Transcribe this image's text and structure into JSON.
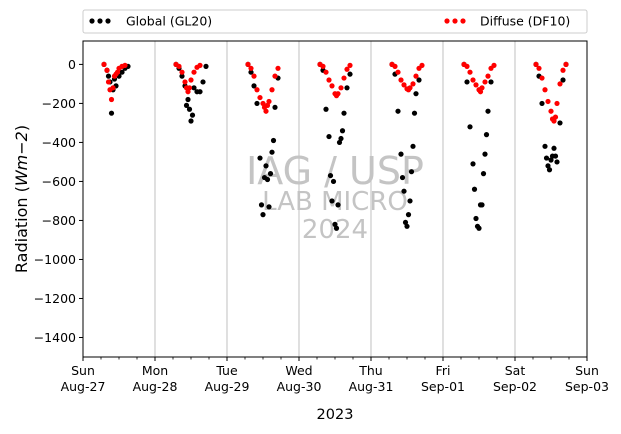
{
  "chart_data": {
    "type": "scatter",
    "title": "",
    "ylabel": "Radiation ($Wm{-}2$)",
    "ylabel_parts": {
      "prefix": "Radiation (",
      "math": "Wm−2",
      "suffix": ")"
    },
    "xlabel": "2023",
    "ylim": [
      -1500,
      120
    ],
    "yticks": [
      0,
      -200,
      -400,
      -600,
      -800,
      -1000,
      -1200,
      -1400
    ],
    "xlim_days": [
      0,
      7
    ],
    "x_ticks": [
      {
        "day": "Sun",
        "date": "Aug-27"
      },
      {
        "day": "Mon",
        "date": "Aug-28"
      },
      {
        "day": "Tue",
        "date": "Aug-29"
      },
      {
        "day": "Wed",
        "date": "Aug-30"
      },
      {
        "day": "Thu",
        "date": "Aug-31"
      },
      {
        "day": "Fri",
        "date": "Sep-01"
      },
      {
        "day": "Sat",
        "date": "Sep-02"
      },
      {
        "day": "Sun",
        "date": "Sep-03"
      }
    ],
    "grid": "vertical",
    "legend_placement": "top-outside",
    "series": [
      {
        "name": "Global (GL20)",
        "color": "#000000",
        "points": [
          [
            "Aug-27 07:00",
            0
          ],
          [
            "Aug-27 08:00",
            -30
          ],
          [
            "Aug-27 08:30",
            -60
          ],
          [
            "Aug-27 09:00",
            -90
          ],
          [
            "Aug-27 09:30",
            -250
          ],
          [
            "Aug-27 10:00",
            -130
          ],
          [
            "Aug-27 10:30",
            -75
          ],
          [
            "Aug-27 11:00",
            -110
          ],
          [
            "Aug-27 12:00",
            -60
          ],
          [
            "Aug-27 13:00",
            -40
          ],
          [
            "Aug-27 14:00",
            -20
          ],
          [
            "Aug-27 15:00",
            -10
          ],
          [
            "Aug-28 07:00",
            0
          ],
          [
            "Aug-28 08:00",
            -20
          ],
          [
            "Aug-28 09:00",
            -60
          ],
          [
            "Aug-28 10:00",
            -110
          ],
          [
            "Aug-28 10:30",
            -210
          ],
          [
            "Aug-28 11:00",
            -180
          ],
          [
            "Aug-28 11:30",
            -230
          ],
          [
            "Aug-28 12:00",
            -290
          ],
          [
            "Aug-28 12:30",
            -260
          ],
          [
            "Aug-28 13:00",
            -120
          ],
          [
            "Aug-28 14:00",
            -140
          ],
          [
            "Aug-28 15:00",
            -140
          ],
          [
            "Aug-28 16:00",
            -90
          ],
          [
            "Aug-28 17:00",
            -10
          ],
          [
            "Aug-29 07:00",
            0
          ],
          [
            "Aug-29 08:00",
            -40
          ],
          [
            "Aug-29 09:00",
            -110
          ],
          [
            "Aug-29 10:00",
            -200
          ],
          [
            "Aug-29 11:00",
            -480
          ],
          [
            "Aug-29 11:30",
            -720
          ],
          [
            "Aug-29 12:00",
            -770
          ],
          [
            "Aug-29 12:30",
            -580
          ],
          [
            "Aug-29 13:00",
            -520
          ],
          [
            "Aug-29 13:30",
            -590
          ],
          [
            "Aug-29 14:00",
            -730
          ],
          [
            "Aug-29 14:30",
            -560
          ],
          [
            "Aug-29 15:00",
            -450
          ],
          [
            "Aug-29 15:30",
            -390
          ],
          [
            "Aug-29 16:00",
            -220
          ],
          [
            "Aug-29 17:00",
            -70
          ],
          [
            "Aug-30 07:00",
            0
          ],
          [
            "Aug-30 08:00",
            -30
          ],
          [
            "Aug-30 09:00",
            -230
          ],
          [
            "Aug-30 10:00",
            -370
          ],
          [
            "Aug-30 10:30",
            -570
          ],
          [
            "Aug-30 11:00",
            -700
          ],
          [
            "Aug-30 11:30",
            -600
          ],
          [
            "Aug-30 12:00",
            -820
          ],
          [
            "Aug-30 12:30",
            -840
          ],
          [
            "Aug-30 13:00",
            -720
          ],
          [
            "Aug-30 13:30",
            -400
          ],
          [
            "Aug-30 14:00",
            -380
          ],
          [
            "Aug-30 14:30",
            -340
          ],
          [
            "Aug-30 15:00",
            -250
          ],
          [
            "Aug-30 16:00",
            -120
          ],
          [
            "Aug-30 17:00",
            -50
          ],
          [
            "Aug-31 07:00",
            0
          ],
          [
            "Aug-31 08:00",
            -50
          ],
          [
            "Aug-31 09:00",
            -240
          ],
          [
            "Aug-31 10:00",
            -460
          ],
          [
            "Aug-31 10:30",
            -580
          ],
          [
            "Aug-31 11:00",
            -650
          ],
          [
            "Aug-31 11:30",
            -810
          ],
          [
            "Aug-31 12:00",
            -830
          ],
          [
            "Aug-31 12:30",
            -770
          ],
          [
            "Aug-31 13:00",
            -700
          ],
          [
            "Aug-31 13:30",
            -550
          ],
          [
            "Aug-31 14:00",
            -420
          ],
          [
            "Aug-31 14:30",
            -250
          ],
          [
            "Aug-31 15:00",
            -150
          ],
          [
            "Aug-31 16:00",
            -80
          ],
          [
            "Sep-01 07:00",
            0
          ],
          [
            "Sep-01 08:00",
            -90
          ],
          [
            "Sep-01 09:00",
            -320
          ],
          [
            "Sep-01 10:00",
            -510
          ],
          [
            "Sep-01 10:30",
            -640
          ],
          [
            "Sep-01 11:00",
            -790
          ],
          [
            "Sep-01 11:30",
            -830
          ],
          [
            "Sep-01 12:00",
            -840
          ],
          [
            "Sep-01 12:30",
            -720
          ],
          [
            "Sep-01 13:00",
            -720
          ],
          [
            "Sep-01 13:30",
            -560
          ],
          [
            "Sep-01 14:00",
            -460
          ],
          [
            "Sep-01 14:30",
            -360
          ],
          [
            "Sep-01 15:00",
            -240
          ],
          [
            "Sep-01 16:00",
            -90
          ],
          [
            "Sep-02 07:00",
            0
          ],
          [
            "Sep-02 08:00",
            -60
          ],
          [
            "Sep-02 09:00",
            -200
          ],
          [
            "Sep-02 10:00",
            -420
          ],
          [
            "Sep-02 10:30",
            -480
          ],
          [
            "Sep-02 11:00",
            -520
          ],
          [
            "Sep-02 11:30",
            -540
          ],
          [
            "Sep-02 12:00",
            -490
          ],
          [
            "Sep-02 12:30",
            -470
          ],
          [
            "Sep-02 13:00",
            -430
          ],
          [
            "Sep-02 13:30",
            -470
          ],
          [
            "Sep-02 14:00",
            -500
          ],
          [
            "Sep-02 15:00",
            -300
          ],
          [
            "Sep-02 16:00",
            -80
          ],
          [
            "Sep-02 17:00",
            0
          ]
        ]
      },
      {
        "name": "Diffuse (DF10)",
        "color": "#ff0000",
        "points": [
          [
            "Aug-27 07:00",
            0
          ],
          [
            "Aug-27 08:00",
            -30
          ],
          [
            "Aug-27 08:30",
            -90
          ],
          [
            "Aug-27 09:00",
            -130
          ],
          [
            "Aug-27 09:30",
            -180
          ],
          [
            "Aug-27 10:00",
            -120
          ],
          [
            "Aug-27 10:30",
            -60
          ],
          [
            "Aug-27 11:00",
            -50
          ],
          [
            "Aug-27 11:30",
            -40
          ],
          [
            "Aug-27 12:00",
            -20
          ],
          [
            "Aug-27 13:00",
            -10
          ],
          [
            "Aug-27 14:00",
            -5
          ],
          [
            "Aug-28 07:00",
            0
          ],
          [
            "Aug-28 08:00",
            -10
          ],
          [
            "Aug-28 09:00",
            -40
          ],
          [
            "Aug-28 10:00",
            -90
          ],
          [
            "Aug-28 10:30",
            -120
          ],
          [
            "Aug-28 11:00",
            -140
          ],
          [
            "Aug-28 11:30",
            -120
          ],
          [
            "Aug-28 12:00",
            -80
          ],
          [
            "Aug-28 13:00",
            -40
          ],
          [
            "Aug-28 14:00",
            -15
          ],
          [
            "Aug-28 15:00",
            -5
          ],
          [
            "Aug-29 07:00",
            0
          ],
          [
            "Aug-29 08:00",
            -20
          ],
          [
            "Aug-29 09:00",
            -60
          ],
          [
            "Aug-29 10:00",
            -130
          ],
          [
            "Aug-29 11:00",
            -170
          ],
          [
            "Aug-29 12:00",
            -200
          ],
          [
            "Aug-29 12:30",
            -220
          ],
          [
            "Aug-29 13:00",
            -240
          ],
          [
            "Aug-29 13:30",
            -210
          ],
          [
            "Aug-29 14:00",
            -190
          ],
          [
            "Aug-29 15:00",
            -130
          ],
          [
            "Aug-29 16:00",
            -60
          ],
          [
            "Aug-29 17:00",
            -20
          ],
          [
            "Aug-30 07:00",
            0
          ],
          [
            "Aug-30 08:00",
            -10
          ],
          [
            "Aug-30 09:00",
            -40
          ],
          [
            "Aug-30 10:00",
            -80
          ],
          [
            "Aug-30 11:00",
            -110
          ],
          [
            "Aug-30 12:00",
            -150
          ],
          [
            "Aug-30 12:30",
            -160
          ],
          [
            "Aug-30 13:00",
            -150
          ],
          [
            "Aug-30 14:00",
            -120
          ],
          [
            "Aug-30 15:00",
            -70
          ],
          [
            "Aug-30 16:00",
            -25
          ],
          [
            "Aug-30 17:00",
            -5
          ],
          [
            "Aug-31 07:00",
            0
          ],
          [
            "Aug-31 08:00",
            -10
          ],
          [
            "Aug-31 09:00",
            -40
          ],
          [
            "Aug-31 10:00",
            -80
          ],
          [
            "Aug-31 11:00",
            -105
          ],
          [
            "Aug-31 12:00",
            -125
          ],
          [
            "Aug-31 12:30",
            -130
          ],
          [
            "Aug-31 13:00",
            -120
          ],
          [
            "Aug-31 14:00",
            -100
          ],
          [
            "Aug-31 15:00",
            -60
          ],
          [
            "Aug-31 16:00",
            -20
          ],
          [
            "Aug-31 17:00",
            -5
          ],
          [
            "Sep-01 07:00",
            0
          ],
          [
            "Sep-01 08:00",
            -10
          ],
          [
            "Sep-01 09:00",
            -40
          ],
          [
            "Sep-01 10:00",
            -80
          ],
          [
            "Sep-01 11:00",
            -105
          ],
          [
            "Sep-01 12:00",
            -130
          ],
          [
            "Sep-01 12:30",
            -140
          ],
          [
            "Sep-01 13:00",
            -120
          ],
          [
            "Sep-01 14:00",
            -90
          ],
          [
            "Sep-01 15:00",
            -60
          ],
          [
            "Sep-01 16:00",
            -20
          ],
          [
            "Sep-01 17:00",
            -5
          ],
          [
            "Sep-02 07:00",
            0
          ],
          [
            "Sep-02 08:00",
            -20
          ],
          [
            "Sep-02 09:00",
            -70
          ],
          [
            "Sep-02 10:00",
            -130
          ],
          [
            "Sep-02 11:00",
            -190
          ],
          [
            "Sep-02 12:00",
            -240
          ],
          [
            "Sep-02 12:30",
            -280
          ],
          [
            "Sep-02 13:00",
            -290
          ],
          [
            "Sep-02 13:30",
            -270
          ],
          [
            "Sep-02 14:00",
            -200
          ],
          [
            "Sep-02 15:00",
            -100
          ],
          [
            "Sep-02 16:00",
            -30
          ],
          [
            "Sep-02 17:00",
            0
          ]
        ]
      }
    ],
    "watermark": [
      "IAG / USP",
      "LAB MICRO",
      "2024"
    ]
  }
}
